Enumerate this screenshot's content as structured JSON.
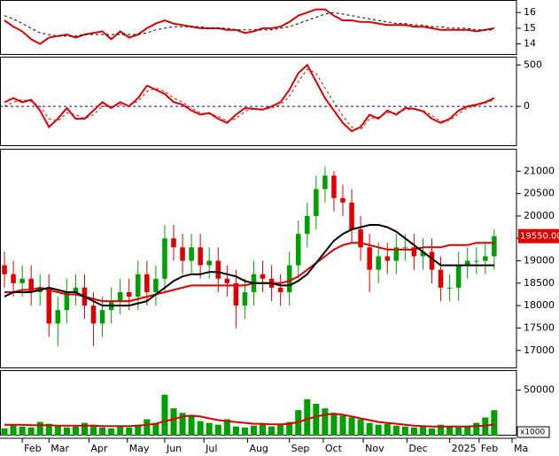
{
  "chart_data": [
    {
      "type": "line",
      "xlim": [
        -0.5,
        57.5
      ],
      "ylim": [
        13.3,
        16.8
      ],
      "yticks": [
        14,
        15,
        16
      ],
      "series": [
        {
          "color": "#e00000",
          "style": "solid",
          "values": [
            15.5,
            15.1,
            14.8,
            14.3,
            14.0,
            14.4,
            14.5,
            14.6,
            14.4,
            14.6,
            14.7,
            14.8,
            14.3,
            14.8,
            14.4,
            14.6,
            15.0,
            15.3,
            15.5,
            15.3,
            15.2,
            15.1,
            15.0,
            15.0,
            15.0,
            14.9,
            14.9,
            14.7,
            14.8,
            15.0,
            15.0,
            15.1,
            15.4,
            15.8,
            16.0,
            16.2,
            16.2,
            15.8,
            15.5,
            15.5,
            15.4,
            15.4,
            15.3,
            15.2,
            15.2,
            15.2,
            15.1,
            15.1,
            15.0,
            14.9,
            14.9,
            14.9,
            14.9,
            14.8,
            14.9,
            15.0
          ]
        },
        {
          "color": "#000000",
          "style": "dashed",
          "values": [
            15.8,
            15.6,
            15.3,
            15.0,
            14.7,
            14.6,
            14.5,
            14.5,
            14.5,
            14.6,
            14.6,
            14.6,
            14.6,
            14.6,
            14.6,
            14.6,
            14.7,
            14.9,
            15.0,
            15.1,
            15.1,
            15.1,
            15.1,
            15.0,
            15.0,
            15.0,
            14.9,
            14.9,
            14.9,
            14.9,
            14.9,
            15.0,
            15.1,
            15.3,
            15.5,
            15.7,
            15.9,
            16.0,
            15.9,
            15.8,
            15.7,
            15.6,
            15.5,
            15.4,
            15.3,
            15.3,
            15.2,
            15.2,
            15.1,
            15.1,
            15.0,
            15.0,
            15.0,
            14.9,
            14.9,
            14.9
          ]
        }
      ]
    },
    {
      "type": "line",
      "xlim": [
        -0.5,
        57.5
      ],
      "ylim": [
        -480,
        600
      ],
      "yticks": [
        0,
        500
      ],
      "zero_line": true,
      "zero_line_color": "#0000c0",
      "series": [
        {
          "color": "#e00000",
          "style": "solid",
          "values": [
            50,
            100,
            50,
            80,
            -50,
            -250,
            -150,
            -20,
            -150,
            -150,
            -50,
            50,
            -20,
            50,
            0,
            100,
            250,
            200,
            150,
            50,
            20,
            -50,
            -100,
            -80,
            -150,
            -200,
            -100,
            -20,
            -30,
            -40,
            0,
            50,
            200,
            400,
            500,
            300,
            100,
            -50,
            -200,
            -300,
            -250,
            -100,
            -150,
            -50,
            -100,
            -20,
            -30,
            -60,
            -150,
            -200,
            -150,
            -50,
            0,
            20,
            50,
            100
          ]
        },
        {
          "color": "#e00000",
          "style": "dashed",
          "values": [
            0,
            50,
            80,
            60,
            0,
            -150,
            -180,
            -80,
            -100,
            -150,
            -100,
            0,
            0,
            20,
            20,
            60,
            180,
            220,
            180,
            100,
            50,
            -20,
            -80,
            -90,
            -120,
            -180,
            -150,
            -60,
            -30,
            -40,
            -20,
            20,
            120,
            300,
            450,
            400,
            220,
            50,
            -120,
            -250,
            -280,
            -150,
            -130,
            -80,
            -80,
            -40,
            -30,
            -50,
            -110,
            -180,
            -170,
            -90,
            -20,
            10,
            40,
            80
          ]
        }
      ]
    },
    {
      "type": "candlestick",
      "xlim": [
        -0.5,
        57.5
      ],
      "ylim": [
        16600,
        21500
      ],
      "yticks": [
        17000,
        17500,
        18000,
        18500,
        19000,
        19500,
        20000,
        20500,
        21000
      ],
      "up_color": "#00a000",
      "down_color": "#e00000",
      "last_price_label": "19550.00",
      "open": [
        18900,
        18700,
        18500,
        18600,
        18300,
        18400,
        17600,
        17900,
        18300,
        18400,
        18000,
        17600,
        17900,
        18100,
        18300,
        18200,
        18700,
        18300,
        18600,
        19500,
        19300,
        19000,
        19300,
        18900,
        19000,
        18600,
        18500,
        18000,
        18300,
        18700,
        18600,
        18400,
        18300,
        18900,
        19600,
        20000,
        20600,
        20900,
        20400,
        20300,
        19700,
        19300,
        18800,
        19100,
        19000,
        19300,
        19300,
        19100,
        19200,
        18800,
        18400,
        18400,
        18900,
        19000,
        19000,
        19100
      ],
      "high": [
        19200,
        19000,
        18900,
        18900,
        18700,
        18700,
        18200,
        18600,
        18700,
        18700,
        18300,
        18200,
        18400,
        18600,
        18600,
        19000,
        19000,
        18900,
        19800,
        19800,
        19600,
        19600,
        19600,
        19300,
        19300,
        18900,
        18800,
        18600,
        19000,
        19000,
        18900,
        18700,
        19200,
        19900,
        20300,
        20900,
        21100,
        21000,
        20700,
        20600,
        20000,
        19600,
        19400,
        19400,
        19600,
        19600,
        19600,
        19500,
        19500,
        19100,
        18700,
        19200,
        19300,
        19300,
        19400,
        19700
      ],
      "low": [
        18400,
        18200,
        18200,
        18000,
        18000,
        17300,
        17100,
        17600,
        18000,
        17700,
        17100,
        17300,
        17600,
        17800,
        17900,
        17900,
        18000,
        18000,
        18300,
        19000,
        18700,
        18700,
        18600,
        18600,
        18300,
        18200,
        17500,
        17700,
        18000,
        18300,
        18100,
        18000,
        18000,
        18600,
        19300,
        19700,
        20300,
        20100,
        20000,
        19400,
        19000,
        18300,
        18500,
        18700,
        18700,
        19000,
        18800,
        18800,
        18500,
        18100,
        18100,
        18100,
        18600,
        18700,
        18700,
        18800
      ],
      "close": [
        18700,
        18500,
        18600,
        18300,
        18400,
        17600,
        17900,
        18300,
        18400,
        18000,
        17600,
        17900,
        18100,
        18300,
        18200,
        18700,
        18300,
        18600,
        19500,
        19300,
        19000,
        19300,
        18900,
        19000,
        18600,
        18500,
        18000,
        18300,
        18700,
        18600,
        18400,
        18300,
        18900,
        19600,
        20000,
        20600,
        20900,
        20400,
        20300,
        19700,
        19300,
        18800,
        19100,
        19000,
        19300,
        19300,
        19100,
        19200,
        18800,
        18400,
        18400,
        18900,
        19000,
        19000,
        19100,
        19550
      ],
      "series": [
        {
          "color": "#e00000",
          "values": [
            18300,
            18300,
            18350,
            18350,
            18400,
            18350,
            18300,
            18250,
            18250,
            18200,
            18150,
            18100,
            18100,
            18100,
            18100,
            18150,
            18200,
            18250,
            18300,
            18350,
            18400,
            18450,
            18450,
            18450,
            18450,
            18450,
            18450,
            18450,
            18500,
            18500,
            18500,
            18500,
            18550,
            18650,
            18800,
            18950,
            19100,
            19250,
            19350,
            19400,
            19400,
            19350,
            19300,
            19250,
            19250,
            19250,
            19250,
            19300,
            19300,
            19300,
            19350,
            19350,
            19350,
            19400,
            19400,
            19400
          ]
        },
        {
          "color": "#000000",
          "values": [
            18200,
            18300,
            18300,
            18300,
            18350,
            18400,
            18350,
            18300,
            18300,
            18200,
            18100,
            18000,
            18000,
            18000,
            18000,
            18050,
            18100,
            18250,
            18400,
            18550,
            18650,
            18700,
            18700,
            18750,
            18750,
            18700,
            18650,
            18550,
            18500,
            18500,
            18500,
            18450,
            18450,
            18550,
            18700,
            18950,
            19200,
            19450,
            19600,
            19700,
            19750,
            19800,
            19800,
            19750,
            19650,
            19500,
            19350,
            19200,
            19050,
            18900,
            18900,
            18900,
            18900,
            18900,
            18900,
            18900
          ]
        }
      ]
    },
    {
      "type": "bar",
      "xlim": [
        -0.5,
        57.5
      ],
      "ylim": [
        0,
        72000
      ],
      "yticks": [
        50000
      ],
      "unit_label": "x1000",
      "color": "#00a000",
      "xticks": [
        {
          "value": 2,
          "label": "Feb"
        },
        {
          "value": 5,
          "label": "Mar"
        },
        {
          "value": 9.5,
          "label": "Apr"
        },
        {
          "value": 13.8,
          "label": "May"
        },
        {
          "value": 18,
          "label": "Jun"
        },
        {
          "value": 22.4,
          "label": "Jul"
        },
        {
          "value": 27.3,
          "label": "Aug"
        },
        {
          "value": 32,
          "label": "Sep"
        },
        {
          "value": 35.8,
          "label": "Oct"
        },
        {
          "value": 40.3,
          "label": "Nov"
        },
        {
          "value": 45.2,
          "label": "Dec"
        },
        {
          "value": 50,
          "label": "2025"
        },
        {
          "value": 53.3,
          "label": "Feb"
        },
        {
          "value": 57,
          "label": "Ma"
        }
      ],
      "values": [
        8000,
        12000,
        10000,
        9000,
        15000,
        13000,
        11000,
        9000,
        10000,
        14000,
        12000,
        9000,
        8000,
        10000,
        9000,
        12000,
        18000,
        14000,
        45000,
        30000,
        25000,
        22000,
        16000,
        14000,
        12000,
        18000,
        10000,
        9000,
        11000,
        13000,
        10000,
        12000,
        15000,
        28000,
        40000,
        35000,
        30000,
        25000,
        22000,
        20000,
        18000,
        14000,
        12000,
        13000,
        11000,
        10000,
        9000,
        10000,
        8000,
        12000,
        10000,
        9000,
        11000,
        14000,
        20000,
        28000
      ],
      "series": [
        {
          "color": "#e00000",
          "values": [
            12000,
            12000,
            12000,
            11500,
            11500,
            11500,
            11000,
            11000,
            11000,
            11000,
            11000,
            10500,
            10500,
            10500,
            10500,
            11000,
            12000,
            13000,
            16000,
            18000,
            21000,
            22000,
            21000,
            19000,
            17000,
            16000,
            15000,
            14000,
            13000,
            13000,
            12500,
            12500,
            13000,
            15000,
            18000,
            21000,
            23000,
            24000,
            23000,
            21000,
            19000,
            17000,
            15000,
            14000,
            13000,
            12000,
            11000,
            10500,
            10000,
            10000,
            10000,
            10000,
            10000,
            10500,
            11000,
            12500
          ]
        }
      ]
    }
  ]
}
